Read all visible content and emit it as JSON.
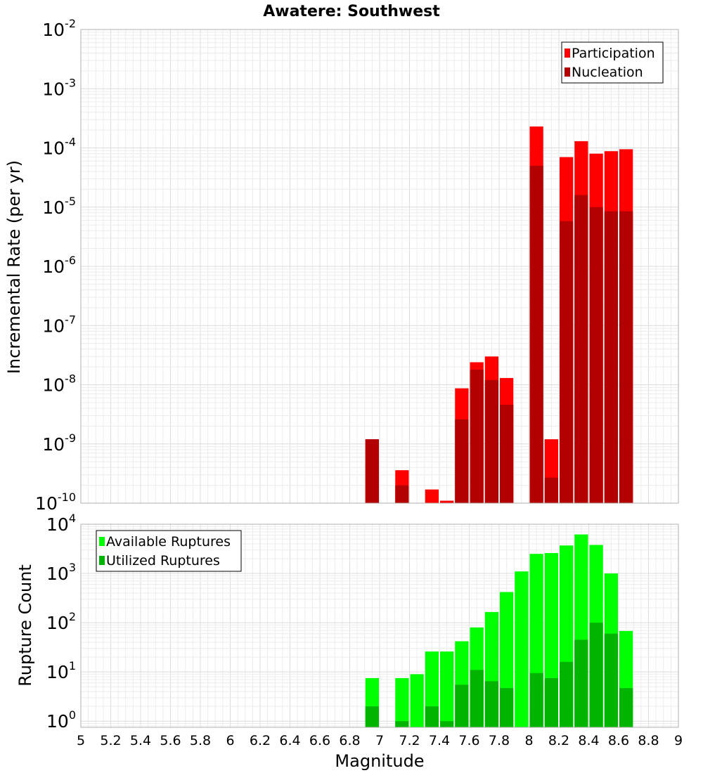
{
  "chart_data": {
    "title": "Awatere: Southwest",
    "xlabel": "Magnitude",
    "xlim": [
      5,
      9
    ],
    "x_ticks": [
      "5",
      "5.2",
      "5.4",
      "5.6",
      "5.8",
      "6",
      "6.2",
      "6.4",
      "6.6",
      "6.8",
      "7",
      "7.2",
      "7.4",
      "7.6",
      "7.8",
      "8",
      "8.2",
      "8.4",
      "8.6",
      "8.8",
      "9"
    ],
    "bin_width": 0.1,
    "grid": true,
    "panels": [
      {
        "type": "bar",
        "scale": "log",
        "ylabel": "Incremental Rate (per yr)",
        "ylim": [
          1e-10,
          0.01
        ],
        "y_ticks": [
          {
            "value": 0.01,
            "base": "10",
            "exp": "-2"
          },
          {
            "value": 0.001,
            "base": "10",
            "exp": "-3"
          },
          {
            "value": 0.0001,
            "base": "10",
            "exp": "-4"
          },
          {
            "value": 1e-05,
            "base": "10",
            "exp": "-5"
          },
          {
            "value": 1e-06,
            "base": "10",
            "exp": "-6"
          },
          {
            "value": 1e-07,
            "base": "10",
            "exp": "-7"
          },
          {
            "value": 1e-08,
            "base": "10",
            "exp": "-8"
          },
          {
            "value": 1e-09,
            "base": "10",
            "exp": "-9"
          },
          {
            "value": 1e-10,
            "base": "10",
            "exp": "-10"
          }
        ],
        "legend_position": "top-right",
        "series": [
          {
            "name": "Participation",
            "color": "#ff0000",
            "points": [
              {
                "x": 6.95,
                "y": 1.2e-09
              },
              {
                "x": 7.15,
                "y": 3.6e-10
              },
              {
                "x": 7.35,
                "y": 1.7e-10
              },
              {
                "x": 7.45,
                "y": 1.1e-10
              },
              {
                "x": 7.55,
                "y": 8.7e-09
              },
              {
                "x": 7.65,
                "y": 2.4e-08
              },
              {
                "x": 7.75,
                "y": 3e-08
              },
              {
                "x": 7.85,
                "y": 1.3e-08
              },
              {
                "x": 8.05,
                "y": 0.00023
              },
              {
                "x": 8.15,
                "y": 1.2e-09
              },
              {
                "x": 8.25,
                "y": 7e-05
              },
              {
                "x": 8.35,
                "y": 0.00013
              },
              {
                "x": 8.45,
                "y": 8e-05
              },
              {
                "x": 8.55,
                "y": 8.8e-05
              },
              {
                "x": 8.65,
                "y": 9.5e-05
              }
            ]
          },
          {
            "name": "Nucleation",
            "color": "#b30000",
            "points": [
              {
                "x": 6.95,
                "y": 1.2e-09
              },
              {
                "x": 7.15,
                "y": 2e-10
              },
              {
                "x": 7.55,
                "y": 2.6e-09
              },
              {
                "x": 7.65,
                "y": 1.8e-08
              },
              {
                "x": 7.75,
                "y": 1.2e-08
              },
              {
                "x": 7.85,
                "y": 4.6e-09
              },
              {
                "x": 8.05,
                "y": 5e-05
              },
              {
                "x": 8.15,
                "y": 2.7e-10
              },
              {
                "x": 8.25,
                "y": 5.8e-06
              },
              {
                "x": 8.35,
                "y": 1.6e-05
              },
              {
                "x": 8.45,
                "y": 1e-05
              },
              {
                "x": 8.55,
                "y": 8.5e-06
              },
              {
                "x": 8.65,
                "y": 8.5e-06
              }
            ]
          }
        ]
      },
      {
        "type": "bar",
        "scale": "log",
        "ylabel": "Rupture Count",
        "ylim": [
          0.75,
          10000
        ],
        "y_ticks": [
          {
            "value": 10000,
            "base": "10",
            "exp": "4"
          },
          {
            "value": 1000,
            "base": "10",
            "exp": "3"
          },
          {
            "value": 100,
            "base": "10",
            "exp": "2"
          },
          {
            "value": 10,
            "base": "10",
            "exp": "1"
          },
          {
            "value": 1,
            "base": "10",
            "exp": "0"
          }
        ],
        "legend_position": "top-left",
        "series": [
          {
            "name": "Available Ruptures",
            "color": "#00ff00",
            "points": [
              {
                "x": 6.95,
                "y": 7.5
              },
              {
                "x": 7.15,
                "y": 7.5
              },
              {
                "x": 7.25,
                "y": 9
              },
              {
                "x": 7.35,
                "y": 26
              },
              {
                "x": 7.45,
                "y": 26
              },
              {
                "x": 7.55,
                "y": 42
              },
              {
                "x": 7.65,
                "y": 80
              },
              {
                "x": 7.75,
                "y": 165
              },
              {
                "x": 7.85,
                "y": 420
              },
              {
                "x": 7.95,
                "y": 1100
              },
              {
                "x": 8.05,
                "y": 2500
              },
              {
                "x": 8.15,
                "y": 2600
              },
              {
                "x": 8.25,
                "y": 3700
              },
              {
                "x": 8.35,
                "y": 6200
              },
              {
                "x": 8.45,
                "y": 3800
              },
              {
                "x": 8.55,
                "y": 1000
              },
              {
                "x": 8.65,
                "y": 68
              }
            ]
          },
          {
            "name": "Utilized Ruptures",
            "color": "#00b400",
            "points": [
              {
                "x": 6.95,
                "y": 2
              },
              {
                "x": 7.15,
                "y": 1
              },
              {
                "x": 7.35,
                "y": 2
              },
              {
                "x": 7.45,
                "y": 1
              },
              {
                "x": 7.55,
                "y": 5.5
              },
              {
                "x": 7.65,
                "y": 11
              },
              {
                "x": 7.75,
                "y": 6.5
              },
              {
                "x": 7.85,
                "y": 4.7
              },
              {
                "x": 8.05,
                "y": 9.5
              },
              {
                "x": 8.15,
                "y": 7.5
              },
              {
                "x": 8.25,
                "y": 16
              },
              {
                "x": 8.35,
                "y": 45
              },
              {
                "x": 8.45,
                "y": 100
              },
              {
                "x": 8.55,
                "y": 60
              },
              {
                "x": 8.65,
                "y": 4.7
              }
            ]
          }
        ]
      }
    ]
  }
}
